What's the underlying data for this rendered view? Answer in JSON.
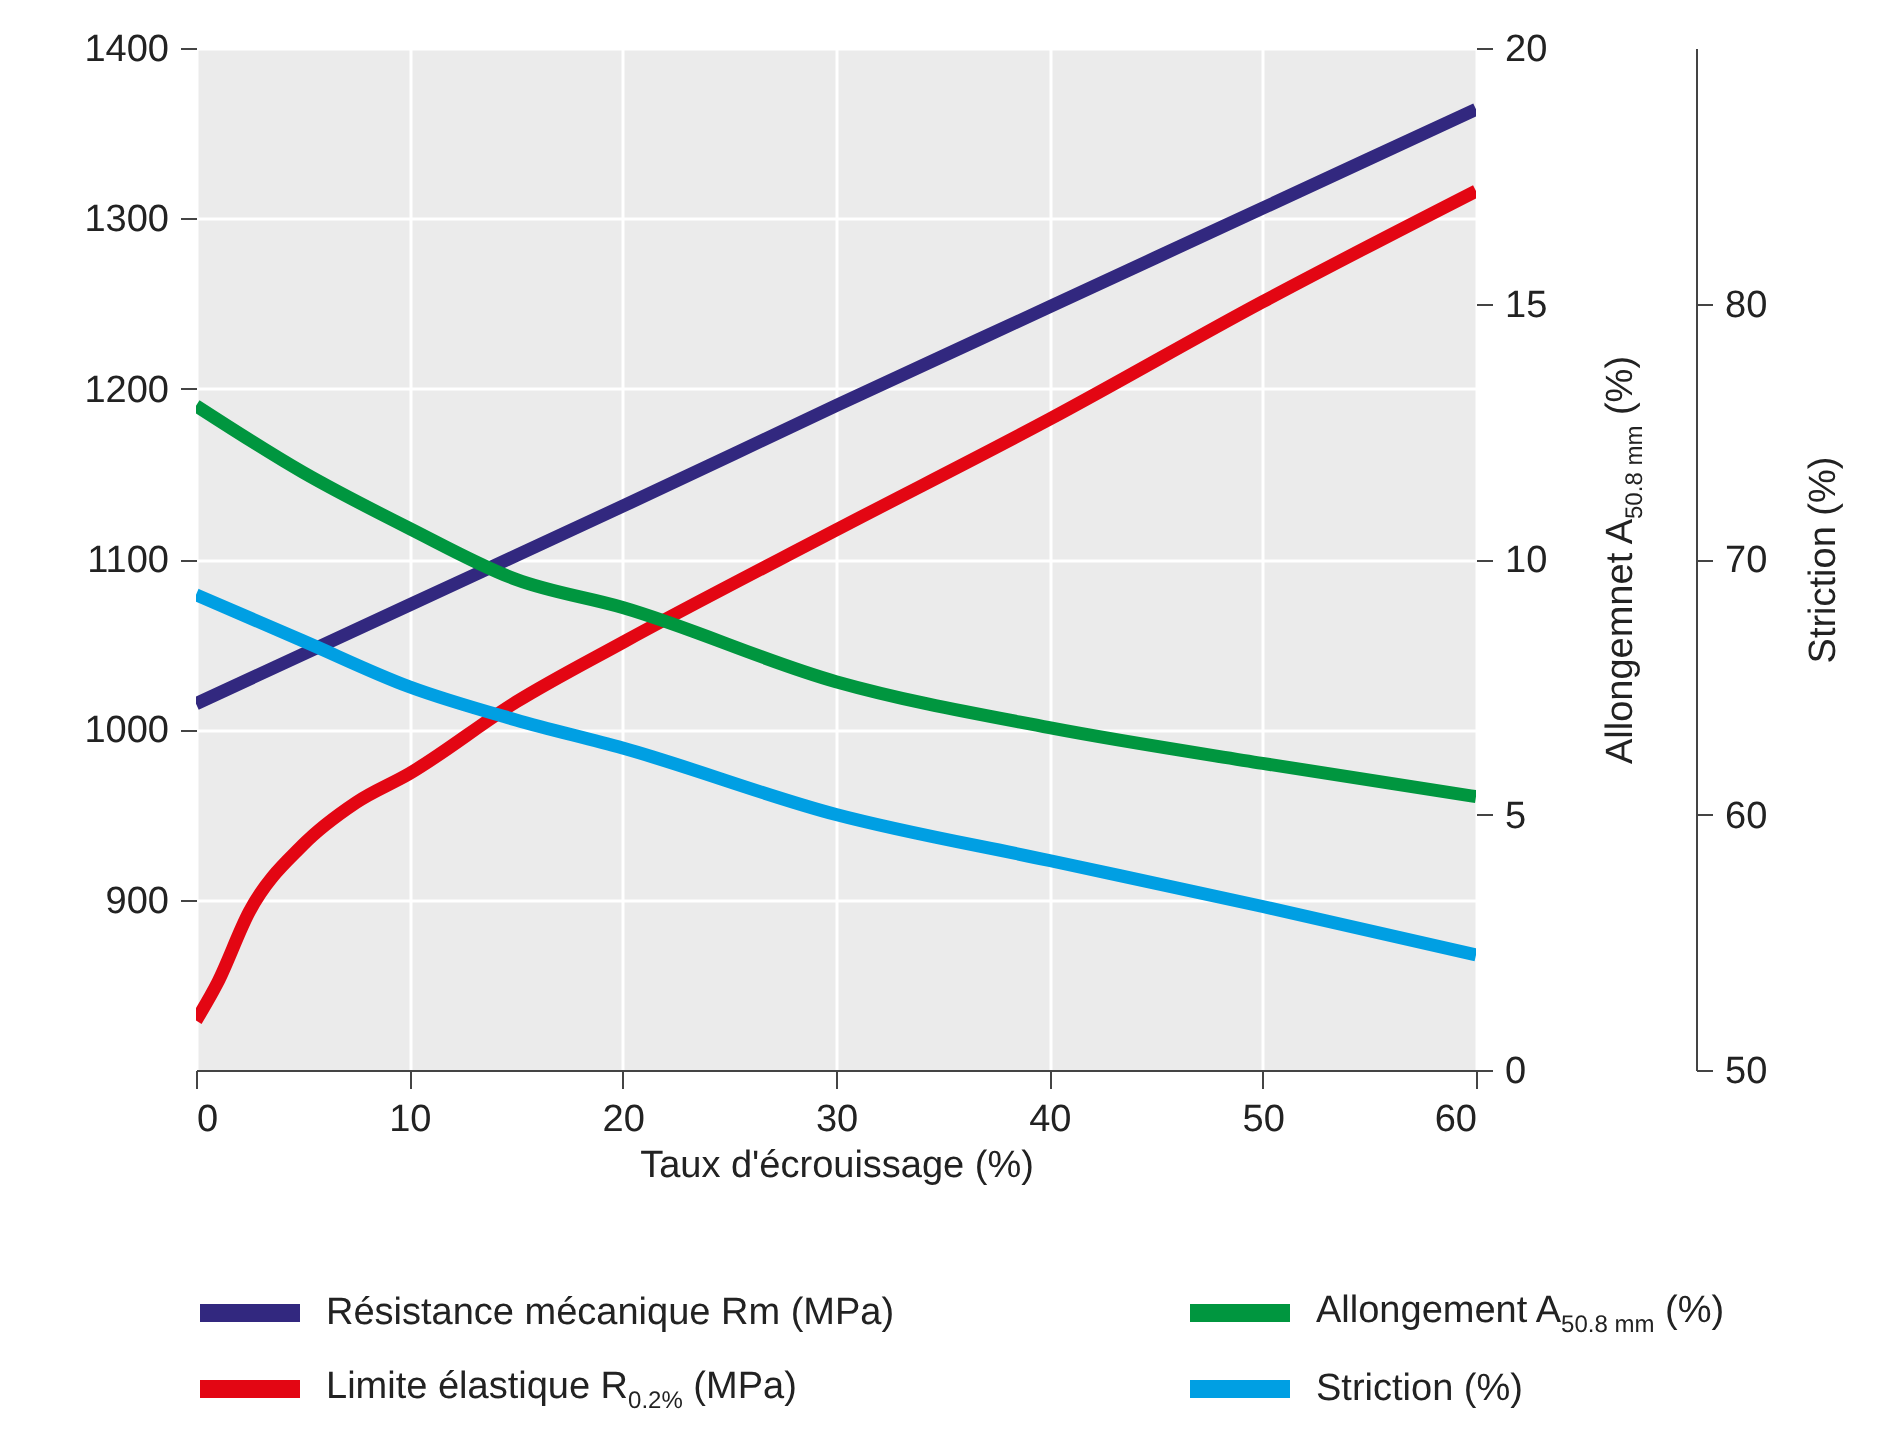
{
  "chart_data": {
    "type": "line",
    "xlabel": "Taux d'écrouissage (%)",
    "y2label": "Allongemnet A$_{50.8 mm}$ (%)",
    "y3label": "Striction (%)",
    "xlim": [
      0,
      60
    ],
    "xticks": [
      0,
      10,
      20,
      30,
      40,
      50,
      60
    ],
    "ylim": [
      800,
      1400
    ],
    "yticks": [
      900,
      1000,
      1100,
      1200,
      1300,
      1400
    ],
    "y2lim": [
      0,
      20
    ],
    "y2ticks": [
      0,
      5,
      10,
      15,
      20
    ],
    "y3lim": [
      50,
      90
    ],
    "y3ticks": [
      50,
      60,
      70,
      80
    ],
    "grid": true,
    "legend": "bottom",
    "x": [
      0,
      5,
      10,
      15,
      20,
      30,
      40,
      50,
      60
    ],
    "series": [
      {
        "name": "Résistance mécanique Rm (MPa)",
        "color": "#32287f",
        "axis": "y",
        "values": [
          1015,
          1044,
          1073,
          1102,
          1131,
          1190,
          1248,
          1306,
          1364
        ]
      },
      {
        "name": "Limite élastique R$_{0.2%}$ (MPa)",
        "color": "#e30613",
        "axis": "y",
        "x": [
          0,
          1,
          2.5,
          5,
          7.5,
          10,
          15,
          20,
          30,
          40,
          50,
          60
        ],
        "values": [
          829,
          851,
          893,
          932,
          957,
          974,
          1016,
          1051,
          1117,
          1182,
          1251,
          1316
        ]
      },
      {
        "name": "Allongement A$_{50.8 mm}$ (%)",
        "color": "#00963f",
        "axis": "y2",
        "values": [
          13.0,
          11.7,
          10.6,
          9.6,
          9.05,
          7.6,
          6.7,
          6.0,
          5.35
        ]
      },
      {
        "name": "Striction (%)",
        "color": "#009fe3",
        "axis": "y3",
        "values": [
          68.6,
          66.8,
          65.0,
          63.7,
          62.6,
          60.0,
          58.2,
          56.4,
          54.5
        ]
      }
    ]
  }
}
